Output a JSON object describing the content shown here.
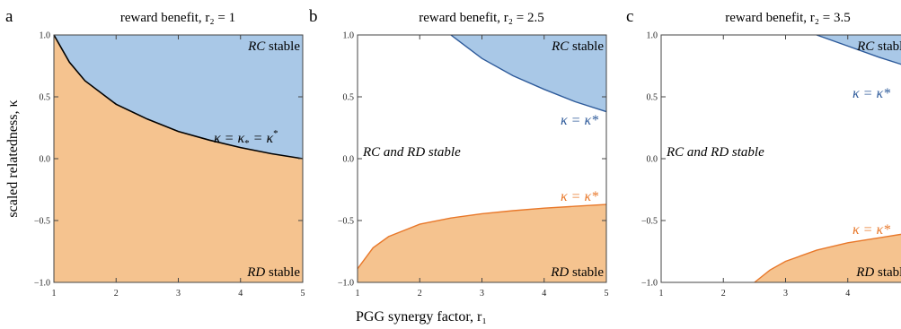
{
  "figure": {
    "ylabel": "scaled relatedness, κ",
    "xlabel": "PGG synergy factor, r₁"
  },
  "chart_data": [
    {
      "type": "area",
      "panel_letter": "a",
      "title": "reward benefit, r₂ = 1",
      "xlim": [
        1,
        5
      ],
      "ylim": [
        -1,
        1
      ],
      "x_ticks": [
        1,
        2,
        3,
        4,
        5
      ],
      "y_ticks": [
        -1.0,
        -0.5,
        0.0,
        0.5,
        1.0
      ],
      "grid": false,
      "series": [
        {
          "name": "κ = κ* = κ*",
          "role": "boundary",
          "x": [
            1.0,
            1.25,
            1.5,
            2.0,
            2.5,
            3.0,
            3.5,
            4.0,
            4.5,
            5.0
          ],
          "y": [
            1.0,
            0.78,
            0.63,
            0.44,
            0.32,
            0.22,
            0.15,
            0.09,
            0.04,
            0.0
          ]
        }
      ],
      "regions": [
        {
          "label_name": "RC",
          "label_suffix": " stable",
          "color": "#a9c8e7"
        },
        {
          "label_name": "RD",
          "label_suffix": " stable",
          "color": "#f5c38f"
        }
      ],
      "annotations": [
        {
          "text": "κ = κ",
          "sub": "*",
          "sup": "*",
          "tail": " = κ",
          "color": "#000000"
        }
      ]
    },
    {
      "type": "area",
      "panel_letter": "b",
      "title": "reward benefit, r₂ = 2.5",
      "xlim": [
        1,
        5
      ],
      "ylim": [
        -1,
        1
      ],
      "x_ticks": [
        1,
        2,
        3,
        4,
        5
      ],
      "y_ticks": [
        -1.0,
        -0.5,
        0.0,
        0.5,
        1.0
      ],
      "grid": false,
      "series": [
        {
          "name": "κ = κ*",
          "role": "upper",
          "color": "#2d5a9a",
          "x": [
            2.5,
            3.0,
            3.5,
            4.0,
            4.5,
            5.0
          ],
          "y": [
            1.0,
            0.81,
            0.67,
            0.56,
            0.46,
            0.38
          ]
        },
        {
          "name": "κ = κ*",
          "role": "lower",
          "color": "#e8782a",
          "x": [
            1.0,
            1.25,
            1.5,
            2.0,
            2.5,
            3.0,
            3.5,
            4.0,
            4.5,
            5.0
          ],
          "y": [
            -0.89,
            -0.72,
            -0.63,
            -0.53,
            -0.48,
            -0.445,
            -0.42,
            -0.4,
            -0.385,
            -0.37
          ]
        }
      ],
      "regions": [
        {
          "label_name": "RC",
          "label_suffix": " stable",
          "color": "#a9c8e7"
        },
        {
          "label_name": "RD",
          "label_suffix": " stable",
          "color": "#f5c38f"
        },
        {
          "text": "RC and RD stable"
        }
      ]
    },
    {
      "type": "area",
      "panel_letter": "c",
      "title": "reward benefit, r₂ = 3.5",
      "xlim": [
        1,
        5
      ],
      "ylim": [
        -1,
        1
      ],
      "x_ticks": [
        1,
        2,
        3,
        4
      ],
      "y_ticks": [
        -1.0,
        -0.5,
        0.0,
        0.5,
        1.0
      ],
      "grid": false,
      "series": [
        {
          "name": "κ = κ*",
          "role": "upper",
          "color": "#2d5a9a",
          "x": [
            3.5,
            4.0,
            4.5,
            5.0
          ],
          "y": [
            1.0,
            0.91,
            0.82,
            0.74
          ]
        },
        {
          "name": "κ = κ*",
          "role": "lower",
          "color": "#e8782a",
          "x": [
            2.5,
            2.75,
            3.0,
            3.5,
            4.0,
            4.5,
            5.0
          ],
          "y": [
            -1.0,
            -0.9,
            -0.83,
            -0.74,
            -0.68,
            -0.64,
            -0.6
          ]
        }
      ],
      "regions": [
        {
          "label_name": "RC",
          "label_suffix": " stable",
          "color": "#a9c8e7"
        },
        {
          "label_name": "RD",
          "label_suffix": " stable",
          "color": "#f5c38f"
        },
        {
          "text": "RC and RD stable"
        }
      ]
    }
  ]
}
